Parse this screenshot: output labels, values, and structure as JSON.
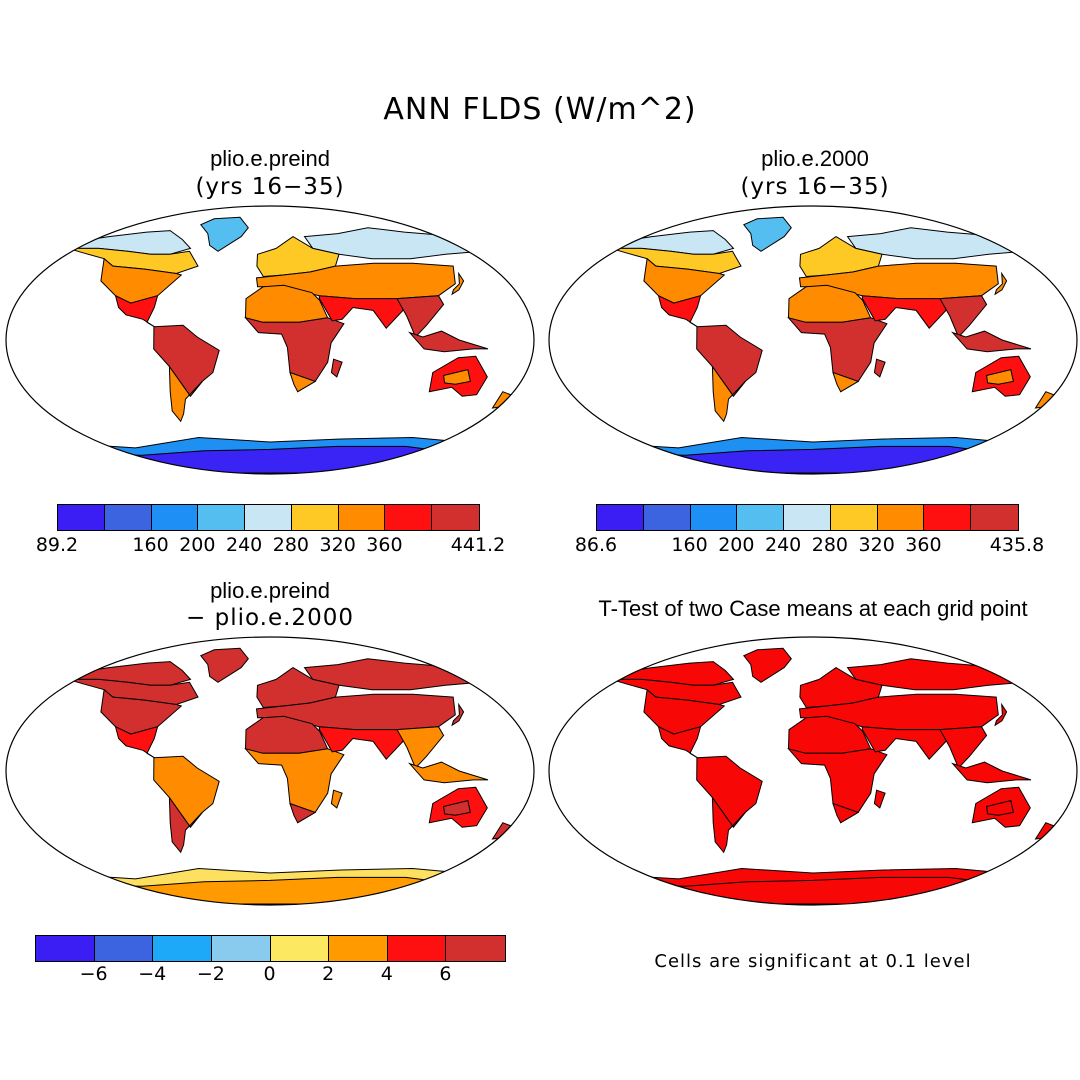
{
  "figure": {
    "title": "ANN FLDS (W/m^2)"
  },
  "panels": [
    {
      "title": "plio.e.preind",
      "subtitle": "(yrs 16−35)",
      "colors": {
        "tropics": "#d22f2f",
        "subtropics": "#ff1010",
        "midlat": "#ff8c00",
        "boreal": "#fec925",
        "arctic": "#c9e6f5",
        "greenland": "#55bef0",
        "antarctic": "#3a24f5",
        "antarctic_edge": "#1e8ff3"
      },
      "colorbar": {
        "colors": [
          "#3a1ef4",
          "#3c64e0",
          "#1e90f5",
          "#55bef0",
          "#c9e6f5",
          "#fec925",
          "#ff8c00",
          "#ff1010",
          "#d22f2f"
        ],
        "labels": [
          {
            "text": "89.2",
            "pos": 0
          },
          {
            "text": "160",
            "pos": 2
          },
          {
            "text": "200",
            "pos": 3
          },
          {
            "text": "240",
            "pos": 4
          },
          {
            "text": "280",
            "pos": 5
          },
          {
            "text": "320",
            "pos": 6
          },
          {
            "text": "360",
            "pos": 7
          },
          {
            "text": "441.2",
            "pos": 9
          }
        ]
      }
    },
    {
      "title": "plio.e.2000",
      "subtitle": "(yrs 16−35)",
      "colors": {
        "tropics": "#d22f2f",
        "subtropics": "#ff1010",
        "midlat": "#ff8c00",
        "boreal": "#fec925",
        "arctic": "#c9e6f5",
        "greenland": "#55bef0",
        "antarctic": "#3a24f5",
        "antarctic_edge": "#1e8ff3"
      },
      "colorbar": {
        "colors": [
          "#3a1ef4",
          "#3c64e0",
          "#1e90f5",
          "#55bef0",
          "#c9e6f5",
          "#fec925",
          "#ff8c00",
          "#ff1010",
          "#d22f2f"
        ],
        "labels": [
          {
            "text": "86.6",
            "pos": 0
          },
          {
            "text": "160",
            "pos": 2
          },
          {
            "text": "200",
            "pos": 3
          },
          {
            "text": "240",
            "pos": 4
          },
          {
            "text": "280",
            "pos": 5
          },
          {
            "text": "320",
            "pos": 6
          },
          {
            "text": "360",
            "pos": 7
          },
          {
            "text": "435.8",
            "pos": 9
          }
        ]
      }
    },
    {
      "title": "plio.e.preind",
      "subtitle": "− plio.e.2000",
      "colors": {
        "tropics": "#ff8c00",
        "subtropics": "#ff1010",
        "midlat": "#d22f2f",
        "boreal": "#d22f2f",
        "arctic": "#d22f2f",
        "greenland": "#d22f2f",
        "antarctic": "#ff9a00",
        "antarctic_edge": "#fee060"
      },
      "colorbar": {
        "colors": [
          "#3a1ef4",
          "#3c64e0",
          "#1ea8f8",
          "#88cbee",
          "#fde961",
          "#ff9a00",
          "#ff1010",
          "#d22f2f"
        ],
        "labels": [
          {
            "text": "−6",
            "pos": 1
          },
          {
            "text": "−4",
            "pos": 2
          },
          {
            "text": "−2",
            "pos": 3
          },
          {
            "text": "0",
            "pos": 4
          },
          {
            "text": "2",
            "pos": 5
          },
          {
            "text": "4",
            "pos": 6
          },
          {
            "text": "6",
            "pos": 7
          }
        ]
      }
    },
    {
      "title": "T-Test of two Case means at each grid point",
      "colors": {
        "tropics": "#f80707",
        "subtropics": "#f80707",
        "midlat": "#f80707",
        "boreal": "#f80707",
        "arctic": "#f80707",
        "greenland": "#f80707",
        "antarctic": "#f80707",
        "antarctic_edge": "#f80707"
      },
      "note": "Cells are significant at 0.1 level"
    }
  ]
}
